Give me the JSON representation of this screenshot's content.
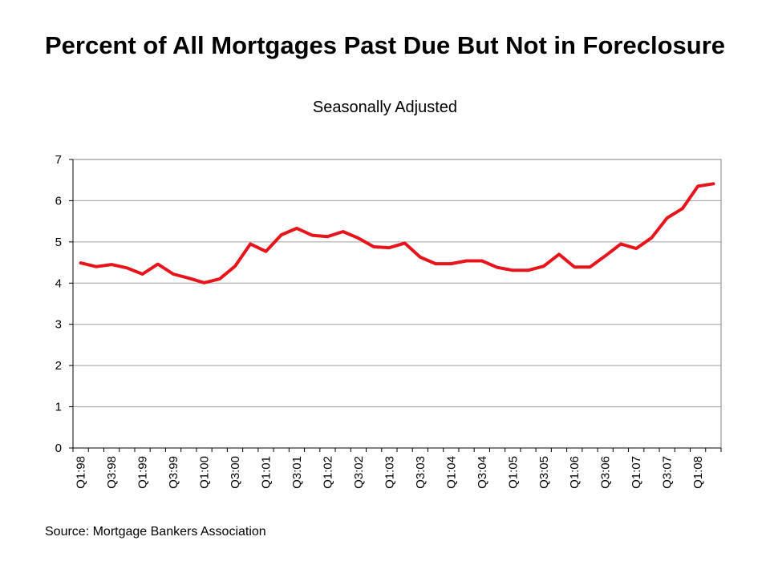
{
  "chart_data": {
    "type": "line",
    "title": "Percent of All Mortgages Past Due But Not in Foreclosure",
    "subtitle": "Seasonally Adjusted",
    "source": "Source: Mortgage Bankers Association",
    "xlabel": "",
    "ylabel": "",
    "ylim": [
      0,
      7
    ],
    "yticks": [
      0,
      1,
      2,
      3,
      4,
      5,
      6,
      7
    ],
    "grid": true,
    "legend": "none",
    "line_color": "#e8141b",
    "x": [
      "Q1:98",
      "Q2:98",
      "Q3:98",
      "Q4:98",
      "Q1:99",
      "Q2:99",
      "Q3:99",
      "Q4:99",
      "Q1:00",
      "Q2:00",
      "Q3:00",
      "Q4:00",
      "Q1:01",
      "Q2:01",
      "Q3:01",
      "Q4:01",
      "Q1:02",
      "Q2:02",
      "Q3:02",
      "Q4:02",
      "Q1:03",
      "Q2:03",
      "Q3:03",
      "Q4:03",
      "Q1:04",
      "Q2:04",
      "Q3:04",
      "Q4:04",
      "Q1:05",
      "Q2:05",
      "Q3:05",
      "Q4:05",
      "Q1:06",
      "Q2:06",
      "Q3:06",
      "Q4:06",
      "Q1:07",
      "Q2:07",
      "Q3:07",
      "Q4:07",
      "Q1:08",
      "Q2:08"
    ],
    "x_tick_labels": [
      "Q1:98",
      "Q3:98",
      "Q1:99",
      "Q3:99",
      "Q1:00",
      "Q3:00",
      "Q1:01",
      "Q3:01",
      "Q1:02",
      "Q3:02",
      "Q1:03",
      "Q3:03",
      "Q1:04",
      "Q3:04",
      "Q1:05",
      "Q3:05",
      "Q1:06",
      "Q3:06",
      "Q1:07",
      "Q3:07",
      "Q1:08"
    ],
    "series": [
      {
        "values": [
          4.49,
          4.4,
          4.45,
          4.37,
          4.22,
          4.46,
          4.22,
          4.12,
          4.01,
          4.1,
          4.41,
          4.95,
          4.77,
          5.17,
          5.33,
          5.16,
          5.13,
          5.25,
          5.09,
          4.88,
          4.86,
          4.97,
          4.63,
          4.47,
          4.47,
          4.54,
          4.54,
          4.38,
          4.31,
          4.31,
          4.41,
          4.7,
          4.39,
          4.39,
          4.66,
          4.95,
          4.84,
          5.1,
          5.58,
          5.81,
          6.35,
          6.41
        ]
      }
    ]
  }
}
